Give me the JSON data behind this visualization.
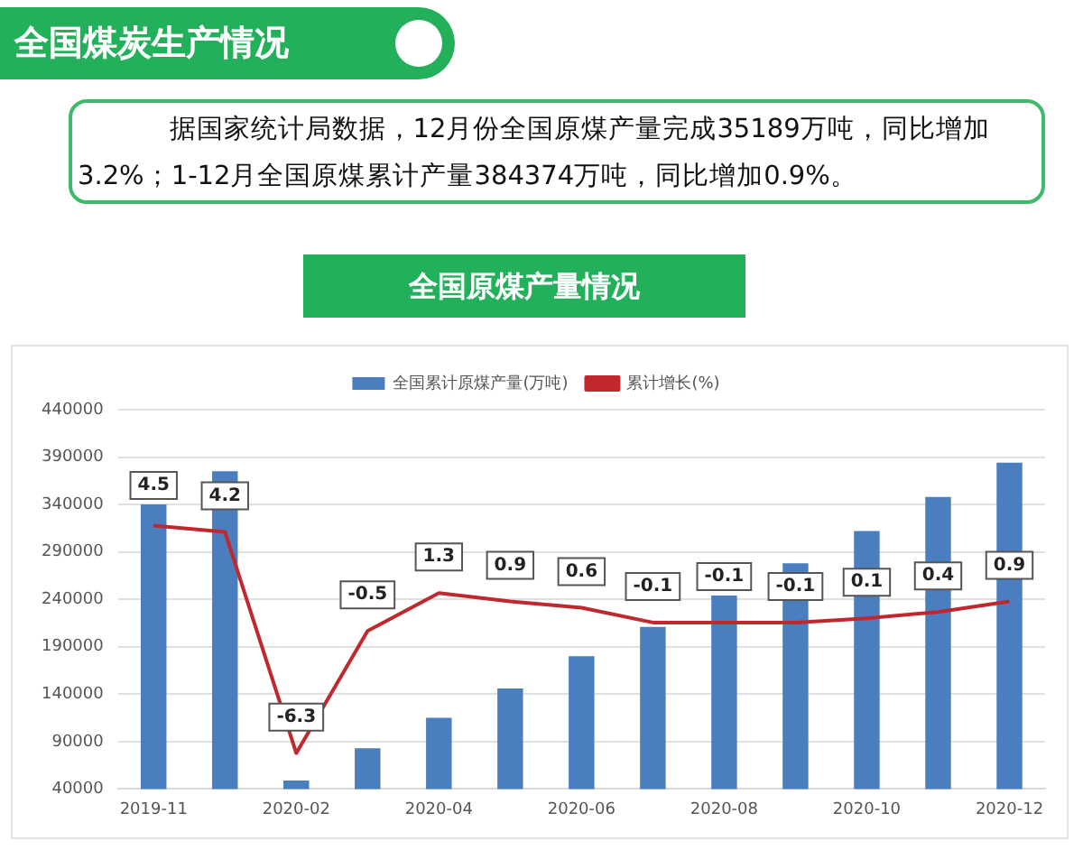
{
  "chart_data": {
    "type": "bar",
    "title": "全国煤炭生产情况",
    "subtitle": "全国原煤产量情况",
    "annotations": [
      "据国家统计局数据，12月份全国原煤产量完成35189万吨，同比增加3.2%；1-12月全国原煤累计产量384374万吨，同比增加0.9%。"
    ],
    "categories": [
      "2019-11",
      null,
      "2020-02",
      null,
      "2020-04",
      null,
      "2020-06",
      null,
      "2020-08",
      null,
      "2020-10",
      null,
      "2020-12"
    ],
    "series": [
      {
        "name": "全国累计原煤产量(万吨)",
        "color": "#4a7ebf",
        "values": [
          340000,
          375000,
          49000,
          83000,
          115000,
          146000,
          180000,
          211000,
          244000,
          278000,
          312000,
          348000,
          384000
        ]
      },
      {
        "name": "累计增长(%)",
        "type": "line",
        "axis": "y2",
        "color": "#c0282d",
        "marker": "none",
        "data_labels": true,
        "values": [
          4.5,
          4.2,
          -6.3,
          -0.5,
          1.3,
          0.9,
          0.6,
          -0.1,
          -0.1,
          -0.1,
          0.1,
          0.4,
          0.9
        ]
      }
    ],
    "ylim": [
      40000,
      440000
    ],
    "yticks": [
      40000,
      90000,
      140000,
      190000,
      240000,
      290000,
      340000,
      390000,
      440000
    ],
    "y2lim": [
      -8,
      10
    ],
    "grid": "y",
    "legend": "top"
  }
}
